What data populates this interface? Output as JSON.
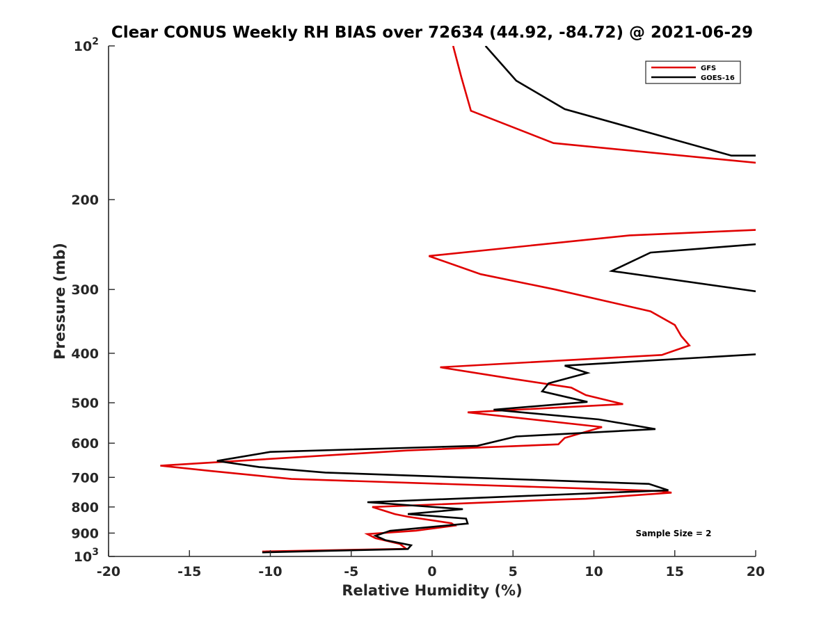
{
  "chart_data": {
    "type": "line",
    "title": "Clear CONUS Weekly RH BIAS over 72634 (44.92, -84.72) @ 2021-06-29",
    "xlabel": "Relative Humidity (%)",
    "ylabel": "Pressure (mb)",
    "xlim": [
      -20,
      20
    ],
    "ylim": [
      100,
      1000
    ],
    "yscale": "log",
    "yreversed": true,
    "grid": false,
    "x_ticks": [
      -20,
      -15,
      -10,
      -5,
      0,
      5,
      10,
      15,
      20
    ],
    "x_tick_labels": [
      "-20",
      "-15",
      "-10",
      "-5",
      "0",
      "5",
      "10",
      "15",
      "20"
    ],
    "y_ticks": [
      {
        "value": 100,
        "base": "10",
        "exp": "2"
      },
      {
        "value": 200,
        "label": "200"
      },
      {
        "value": 300,
        "label": "300"
      },
      {
        "value": 400,
        "label": "400"
      },
      {
        "value": 500,
        "label": "500"
      },
      {
        "value": 600,
        "label": "600"
      },
      {
        "value": 700,
        "label": "700"
      },
      {
        "value": 800,
        "label": "800"
      },
      {
        "value": 900,
        "label": "900"
      },
      {
        "value": 1000,
        "base": "10",
        "exp": "3"
      }
    ],
    "legend_position": "top-right",
    "annotation": "Sample Size = 2",
    "series": [
      {
        "name": "GFS",
        "color": "#e00000",
        "points": [
          [
            1.3,
            100
          ],
          [
            1.8,
            115
          ],
          [
            2.4,
            134
          ],
          [
            7.5,
            155
          ],
          [
            20.5,
            170
          ],
          [
            20.5,
            229
          ],
          [
            12.2,
            235
          ],
          [
            -0.2,
            258
          ],
          [
            3.0,
            280
          ],
          [
            7.6,
            300
          ],
          [
            13.5,
            331
          ],
          [
            15.0,
            352
          ],
          [
            15.4,
            370
          ],
          [
            15.9,
            386
          ],
          [
            14.2,
            403
          ],
          [
            0.5,
            426
          ],
          [
            5.0,
            449
          ],
          [
            8.6,
            467
          ],
          [
            9.5,
            483
          ],
          [
            11.8,
            503
          ],
          [
            2.2,
            522
          ],
          [
            10.5,
            558
          ],
          [
            8.2,
            586
          ],
          [
            7.8,
            603
          ],
          [
            -1.5,
            620
          ],
          [
            -16.8,
            664
          ],
          [
            -13.7,
            680
          ],
          [
            -8.7,
            705
          ],
          [
            12.2,
            741
          ],
          [
            14.2,
            745
          ],
          [
            14.8,
            750
          ],
          [
            9.5,
            771
          ],
          [
            7.3,
            775
          ],
          [
            -3.7,
            800
          ],
          [
            -2.3,
            826
          ],
          [
            -1.5,
            836
          ],
          [
            1.2,
            861
          ],
          [
            1.4,
            870
          ],
          [
            -1.0,
            890
          ],
          [
            -4.0,
            904
          ],
          [
            -3.5,
            921
          ],
          [
            -2.0,
            945
          ],
          [
            -1.6,
            966
          ],
          [
            -10.5,
            978
          ]
        ]
      },
      {
        "name": "GOES-16",
        "color": "#000000",
        "points": [
          [
            3.3,
            100
          ],
          [
            5.2,
            117
          ],
          [
            8.2,
            133
          ],
          [
            18.5,
            164
          ],
          [
            20.5,
            164
          ],
          [
            20.5,
            244
          ],
          [
            13.5,
            254
          ],
          [
            11.1,
            276
          ],
          [
            20.5,
            304
          ],
          [
            20.5,
            401
          ],
          [
            8.2,
            423
          ],
          [
            9.6,
            437
          ],
          [
            7.2,
            458
          ],
          [
            6.8,
            475
          ],
          [
            9.6,
            498
          ],
          [
            3.8,
            516
          ],
          [
            10.3,
            539
          ],
          [
            13.8,
            563
          ],
          [
            5.2,
            582
          ],
          [
            2.8,
            607
          ],
          [
            -10.0,
            624
          ],
          [
            -13.3,
            650
          ],
          [
            -10.7,
            668
          ],
          [
            -6.6,
            685
          ],
          [
            13.4,
            721
          ],
          [
            14.6,
            742
          ],
          [
            -4.0,
            783
          ],
          [
            1.9,
            808
          ],
          [
            -1.5,
            826
          ],
          [
            2.1,
            843
          ],
          [
            2.2,
            862
          ],
          [
            -2.6,
            891
          ],
          [
            -3.5,
            911
          ],
          [
            -2.9,
            929
          ],
          [
            -1.3,
            951
          ],
          [
            -1.5,
            967
          ],
          [
            -10.5,
            982
          ]
        ]
      }
    ]
  }
}
